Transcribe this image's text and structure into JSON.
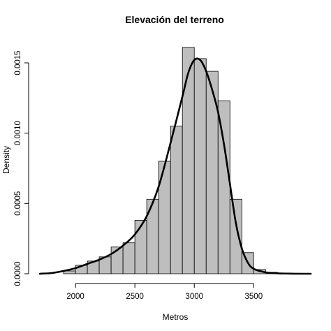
{
  "chart_data": {
    "type": "bar",
    "title": "Elevación del terreno",
    "xlabel": "Metros",
    "ylabel": "Density",
    "xlim": [
      1700,
      3980
    ],
    "ylim": [
      0,
      0.00151
    ],
    "bin_width": 100,
    "bins": [
      {
        "x0": 1900,
        "x1": 2000,
        "density": 2e-05
      },
      {
        "x0": 2000,
        "x1": 2100,
        "density": 6e-05
      },
      {
        "x0": 2100,
        "x1": 2200,
        "density": 9e-05
      },
      {
        "x0": 2200,
        "x1": 2300,
        "density": 0.00012
      },
      {
        "x0": 2300,
        "x1": 2400,
        "density": 0.00019
      },
      {
        "x0": 2400,
        "x1": 2500,
        "density": 0.00022
      },
      {
        "x0": 2500,
        "x1": 2600,
        "density": 0.00038
      },
      {
        "x0": 2600,
        "x1": 2700,
        "density": 0.00053
      },
      {
        "x0": 2700,
        "x1": 2800,
        "density": 0.0008
      },
      {
        "x0": 2800,
        "x1": 2900,
        "density": 0.00105
      },
      {
        "x0": 2900,
        "x1": 3000,
        "density": 0.00161
      },
      {
        "x0": 3000,
        "x1": 3100,
        "density": 0.00153
      },
      {
        "x0": 3100,
        "x1": 3200,
        "density": 0.00144
      },
      {
        "x0": 3200,
        "x1": 3300,
        "density": 0.00123
      },
      {
        "x0": 3300,
        "x1": 3400,
        "density": 0.00053
      },
      {
        "x0": 3400,
        "x1": 3500,
        "density": 0.00015
      },
      {
        "x0": 3500,
        "x1": 3600,
        "density": 3e-05
      },
      {
        "x0": 3600,
        "x1": 3700,
        "density": 1e-05
      }
    ],
    "density_curve": {
      "x": [
        1700,
        1800,
        1900,
        2000,
        2100,
        2200,
        2300,
        2400,
        2500,
        2600,
        2700,
        2800,
        2900,
        2950,
        3000,
        3050,
        3100,
        3150,
        3200,
        3250,
        3300,
        3350,
        3400,
        3450,
        3500,
        3600,
        3700,
        3800,
        3900,
        3980
      ],
      "y": [
        0.0,
        5e-06,
        2e-05,
        4e-05,
        7e-05,
        0.0001,
        0.00014,
        0.0002,
        0.00028,
        0.00041,
        0.00062,
        0.00093,
        0.00126,
        0.00143,
        0.00152,
        0.00152,
        0.00144,
        0.00131,
        0.00115,
        0.00092,
        0.00064,
        0.00036,
        0.00018,
        8e-05,
        3.5e-05,
        1e-05,
        3e-06,
        1e-06,
        0.0,
        0.0
      ]
    },
    "x_ticks": [
      2000,
      2500,
      3000,
      3500
    ],
    "x_tick_labels": [
      "2000",
      "2500",
      "3000",
      "3500"
    ],
    "y_ticks": [
      0,
      0.0005,
      0.001,
      0.0015
    ],
    "y_tick_labels": [
      "0.0000",
      "0.0005",
      "0.0010",
      "0.0015"
    ],
    "bar_fill": "#bebebe",
    "bar_stroke": "#000000",
    "curve_color": "#000000",
    "grid": false,
    "legend": "none"
  }
}
